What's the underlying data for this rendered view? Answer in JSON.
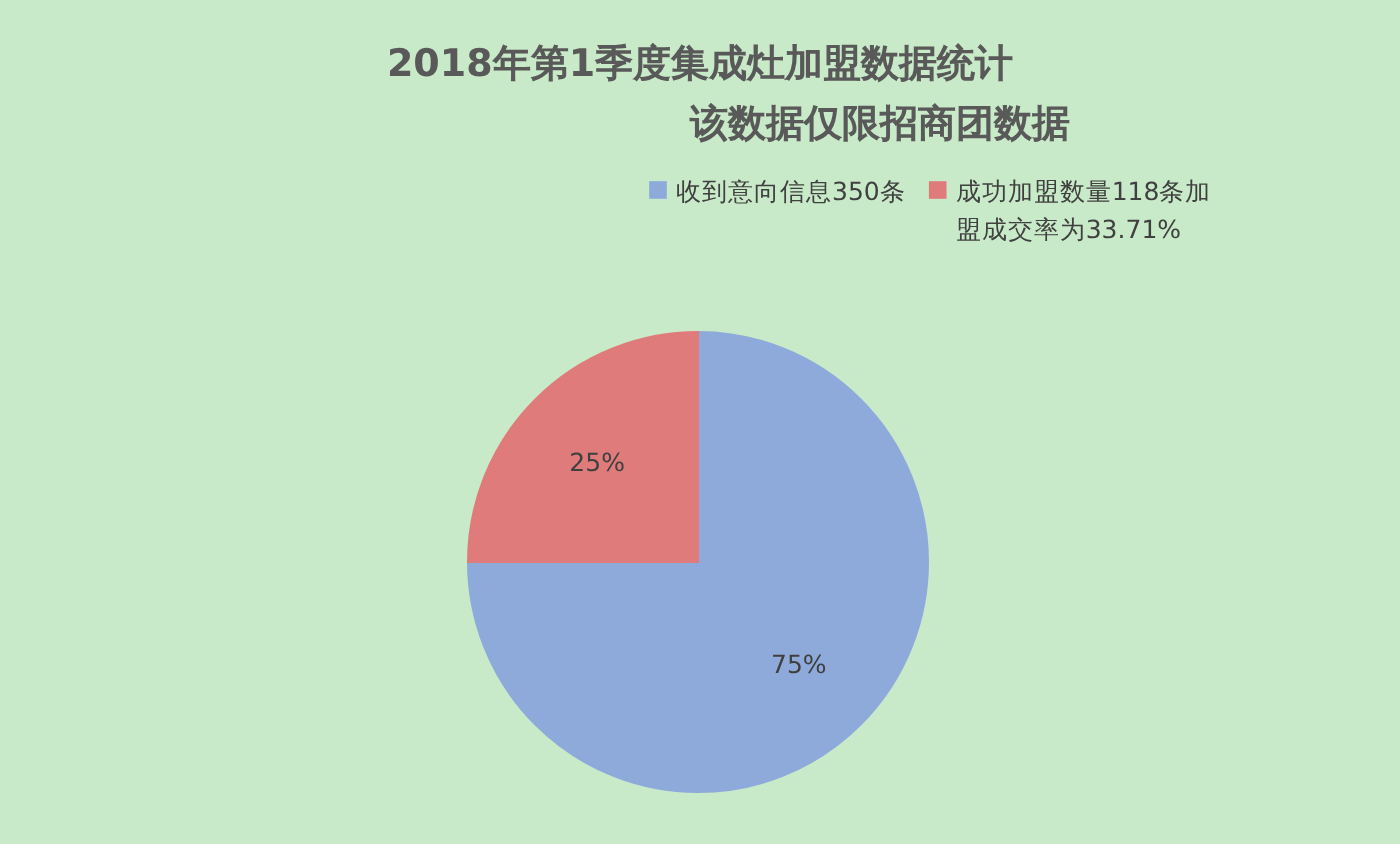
{
  "chart_data": {
    "type": "pie",
    "title": "2018年第1季度集成灶加盟数据统计",
    "subtitle": "该数据仅限招商团数据",
    "categories": [
      "收到意向信息350条",
      "成功加盟数量118条加盟成交率为33.71%"
    ],
    "values": [
      75,
      25
    ],
    "colors": [
      "#8eaadb",
      "#e07b7b"
    ],
    "value_labels": [
      "75%",
      "25%"
    ],
    "legend": "top right"
  }
}
